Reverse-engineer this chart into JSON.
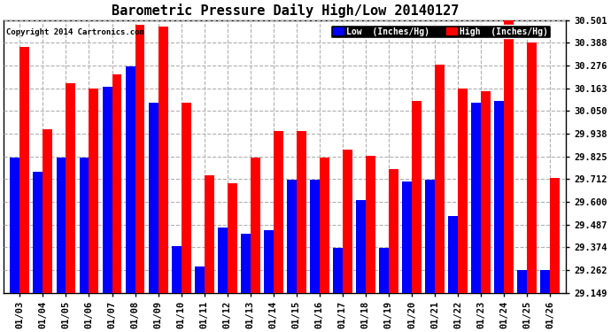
{
  "title": "Barometric Pressure Daily High/Low 20140127",
  "copyright": "Copyright 2014 Cartronics.com",
  "legend_low": "Low  (Inches/Hg)",
  "legend_high": "High  (Inches/Hg)",
  "dates": [
    "01/03",
    "01/04",
    "01/05",
    "01/06",
    "01/07",
    "01/08",
    "01/09",
    "01/10",
    "01/11",
    "01/12",
    "01/13",
    "01/14",
    "01/15",
    "01/16",
    "01/17",
    "01/18",
    "01/19",
    "01/20",
    "01/21",
    "01/22",
    "01/23",
    "01/24",
    "01/25",
    "01/26"
  ],
  "high": [
    30.37,
    29.96,
    30.19,
    30.16,
    30.23,
    30.48,
    30.47,
    30.09,
    29.73,
    29.69,
    29.82,
    29.95,
    29.95,
    29.82,
    29.86,
    29.83,
    29.76,
    30.1,
    30.28,
    30.16,
    30.15,
    30.5,
    30.39,
    29.72
  ],
  "low": [
    29.82,
    29.75,
    29.82,
    29.82,
    30.17,
    30.27,
    30.09,
    29.38,
    29.28,
    29.47,
    29.44,
    29.46,
    29.71,
    29.71,
    29.37,
    29.61,
    29.37,
    29.7,
    29.71,
    29.53,
    30.09,
    30.1,
    29.26,
    29.26
  ],
  "ylim_min": 29.149,
  "ylim_max": 30.501,
  "yticks": [
    29.149,
    29.262,
    29.374,
    29.487,
    29.6,
    29.712,
    29.825,
    29.938,
    30.05,
    30.163,
    30.276,
    30.388,
    30.501
  ],
  "color_low": "#0000ff",
  "color_high": "#ff0000",
  "background_color": "#ffffff",
  "plot_bg_color": "#ffffff",
  "grid_color": "#b0b0b0",
  "title_fontsize": 11,
  "bar_width": 0.42
}
